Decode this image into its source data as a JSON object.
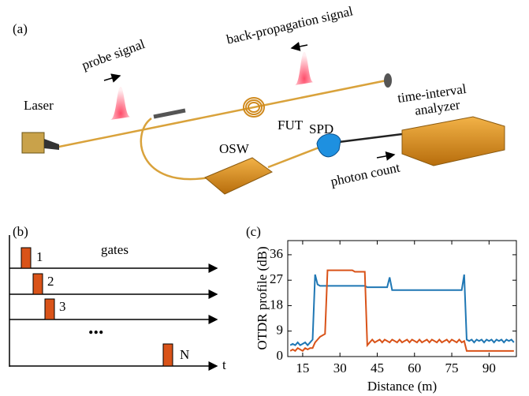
{
  "diagram": {
    "panel_label": "(a)",
    "laser": "Laser",
    "probe_signal": "probe signal",
    "back_propagation_signal": "back-propagation signal",
    "fut": "FUT",
    "time_interval_analyzer": [
      "time-interval",
      "analyzer"
    ],
    "spd": "SPD",
    "osw": "OSW",
    "photon_count": "photon count"
  },
  "timing": {
    "panel_label": "(b)",
    "gates_label": "gates",
    "gate_labels": [
      "1",
      "2",
      "3",
      "N"
    ],
    "ellipsis": "...",
    "time_label": "t"
  },
  "chart_data": {
    "type": "line",
    "panel_label": "(c)",
    "xlabel": "Distance (m)",
    "ylabel": "OTDR profile (dB)",
    "xlim": [
      9,
      101
    ],
    "ylim": [
      0,
      41
    ],
    "xticks": [
      15,
      30,
      45,
      60,
      75,
      90
    ],
    "yticks": [
      0,
      9,
      18,
      27,
      36
    ],
    "x": [
      10,
      11,
      12,
      13,
      14,
      15,
      16,
      17,
      18,
      19,
      20,
      21,
      22,
      23,
      24,
      25,
      26,
      27,
      28,
      29,
      30,
      31,
      32,
      33,
      34,
      35,
      36,
      37,
      38,
      39,
      40,
      41,
      42,
      43,
      44,
      45,
      46,
      47,
      48,
      49,
      50,
      51,
      52,
      53,
      54,
      55,
      56,
      57,
      58,
      59,
      60,
      61,
      62,
      63,
      64,
      65,
      66,
      67,
      68,
      69,
      70,
      71,
      72,
      73,
      74,
      75,
      76,
      77,
      78,
      79,
      80,
      81,
      82,
      83,
      84,
      85,
      86,
      87,
      88,
      89,
      90,
      91,
      92,
      93,
      94,
      95,
      96,
      97,
      98,
      99,
      100
    ],
    "series": [
      {
        "color": "#1f77b4",
        "values": [
          4,
          4.5,
          4,
          5,
          4,
          4.5,
          5,
          4,
          5,
          6,
          29,
          25.5,
          25,
          25,
          25,
          25,
          25,
          25,
          25,
          25,
          25,
          25,
          25,
          25,
          25,
          25,
          25,
          25,
          25,
          25,
          25,
          24.5,
          24.5,
          24.5,
          24.5,
          24.5,
          24.5,
          24.5,
          24.5,
          24.5,
          28,
          23.5,
          23.5,
          23.5,
          23.5,
          23.5,
          23.5,
          23.5,
          23.5,
          23.5,
          23.5,
          23.5,
          23.5,
          23.5,
          23.5,
          23.5,
          23.5,
          23.5,
          23.5,
          23.5,
          23.5,
          23.5,
          23.5,
          23.5,
          23.5,
          23.5,
          23.5,
          23.5,
          23.5,
          23.5,
          29,
          6,
          5.5,
          6,
          5,
          6,
          5.5,
          6,
          5,
          6,
          5.5,
          6,
          5,
          6,
          5.5,
          6,
          5,
          6,
          5.5,
          6,
          5
        ]
      },
      {
        "color": "#d95319",
        "values": [
          2,
          2.5,
          2,
          3,
          2.5,
          2,
          3,
          2.5,
          3,
          3,
          5,
          6,
          7,
          7.5,
          8,
          30.5,
          30.5,
          30.5,
          30.5,
          30.5,
          30.5,
          30.5,
          30.5,
          30.5,
          30.5,
          30.5,
          30,
          30,
          30,
          30,
          30,
          4,
          5,
          6,
          5,
          5.5,
          6,
          5,
          6,
          5.5,
          5,
          6,
          5.5,
          5,
          6,
          5,
          5.5,
          6,
          5,
          6,
          5.5,
          5,
          6,
          5,
          5.5,
          6,
          5,
          6,
          5.5,
          5,
          6,
          5,
          5.5,
          6,
          5,
          6,
          5.5,
          5,
          6,
          5,
          5.5,
          2,
          2,
          2,
          2,
          2,
          2,
          2,
          2,
          2,
          2,
          2,
          2,
          2,
          2,
          2,
          2,
          2,
          2,
          2,
          2
        ]
      }
    ]
  }
}
